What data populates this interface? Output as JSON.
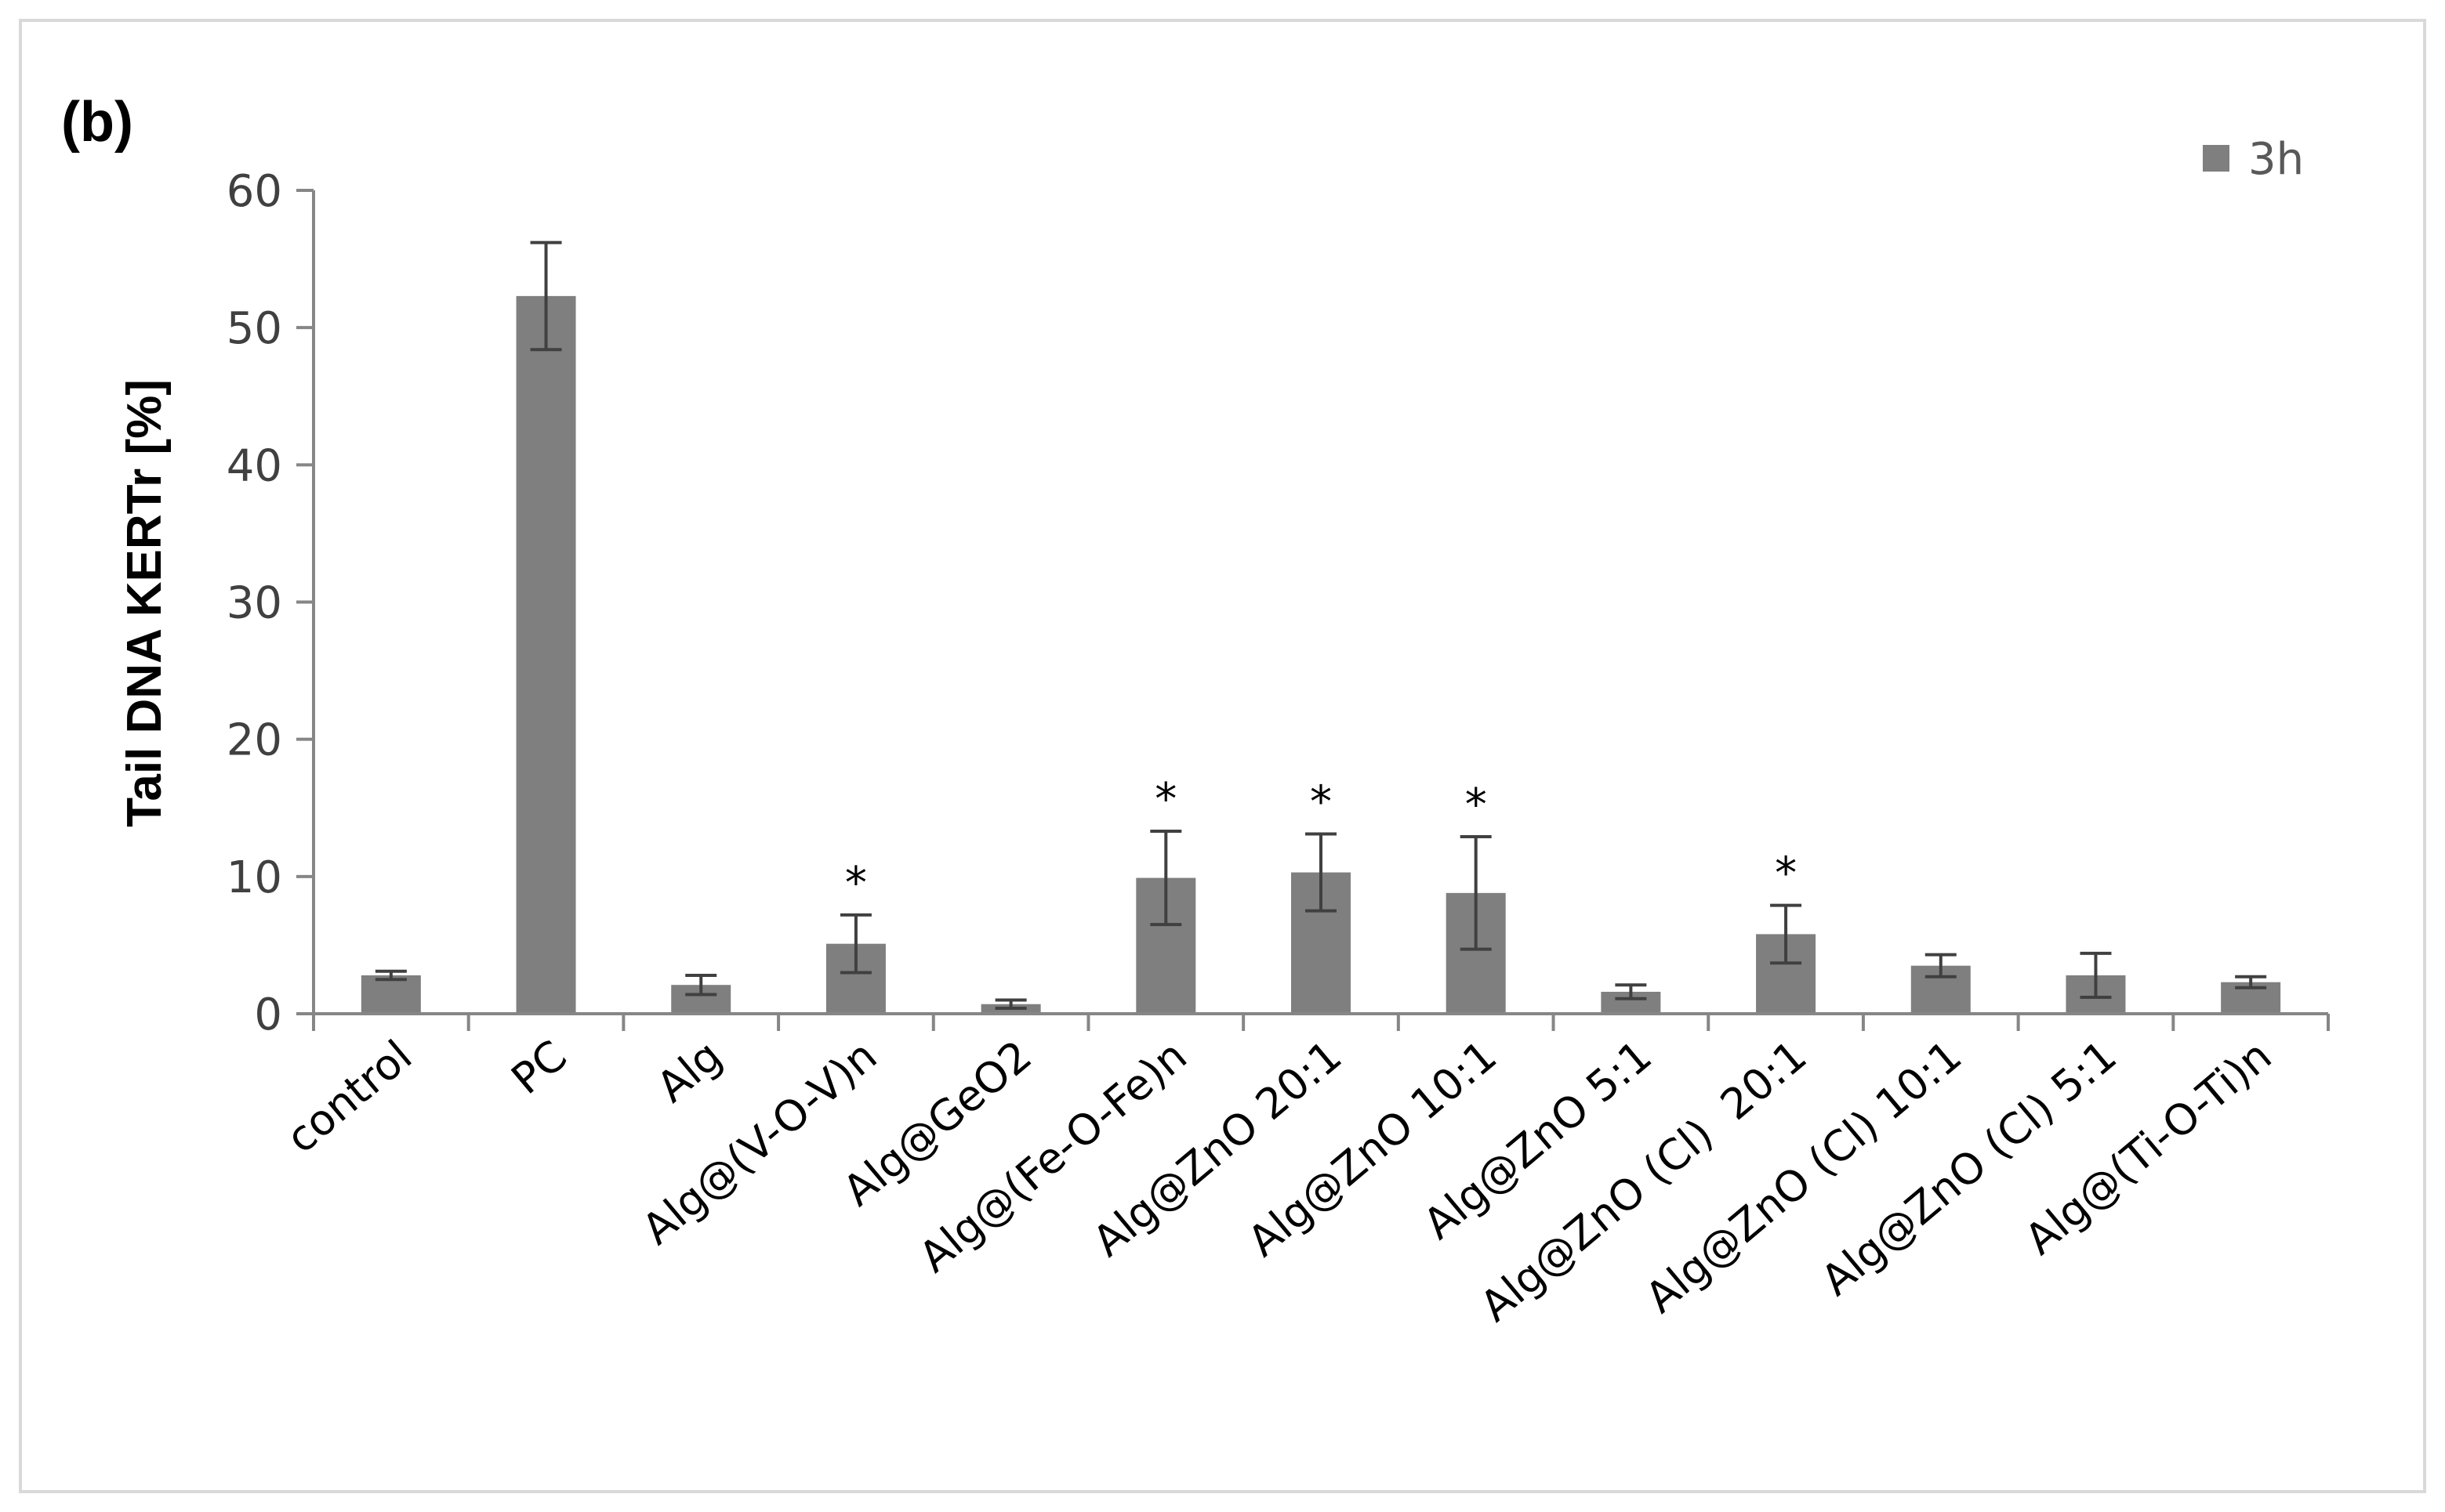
{
  "panel_label": "(b)",
  "colors": {
    "bar": "#7f7f7f",
    "error": "#404040",
    "axis": "#868686",
    "frame": "#d9d9d9"
  },
  "chart_data": {
    "type": "bar",
    "title": "",
    "ylabel": "Tail DNA KERTr [%]",
    "xlabel": "",
    "ylim": [
      0,
      60
    ],
    "yticks": [
      0,
      10,
      20,
      30,
      40,
      50,
      60
    ],
    "grid": false,
    "legend_position": "top-right",
    "categories": [
      "control",
      "PC",
      "Alg",
      "Alg@(V-O-V)n",
      "Alg@GeO2",
      "Alg@(Fe-O-Fe)n",
      "Alg@ZnO 20:1",
      "Alg@ZnO 10:1",
      "Alg@ZnO 5:1",
      "Alg@ZnO (Cl)  20:1",
      "Alg@ZnO (Cl) 10:1",
      "Alg@ZnO (Cl) 5:1",
      "Alg@(Ti-O-Ti)n"
    ],
    "series": [
      {
        "name": "3h",
        "values": [
          2.8,
          52.3,
          2.1,
          5.1,
          0.7,
          9.9,
          10.3,
          8.8,
          1.6,
          5.8,
          3.5,
          2.8,
          2.3
        ],
        "errors": [
          0.3,
          3.9,
          0.7,
          2.1,
          0.3,
          3.4,
          2.8,
          4.1,
          0.5,
          2.1,
          0.8,
          1.6,
          0.4
        ],
        "significance": [
          "",
          "",
          "",
          "*",
          "",
          "*",
          "*",
          "*",
          "",
          "*",
          "",
          "",
          ""
        ]
      }
    ]
  }
}
